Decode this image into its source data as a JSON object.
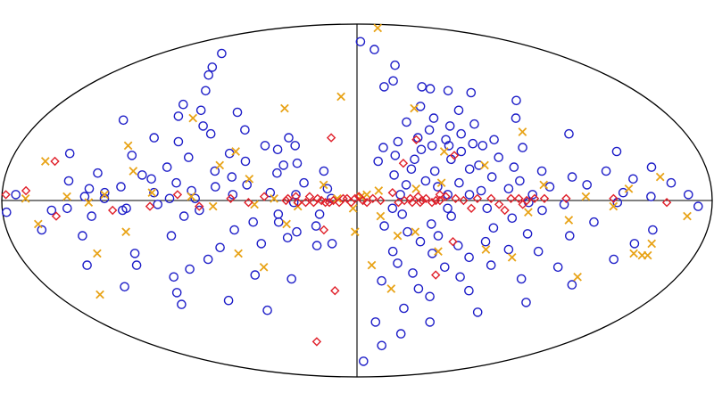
{
  "chart_data": {
    "type": "scatter",
    "projection": "aitoff-hammer-ellipse",
    "xlim": [
      -180,
      180
    ],
    "ylim": [
      -90,
      90
    ],
    "grid": false,
    "axes": "equator-and-central-meridian",
    "series": [
      {
        "marker": "circle",
        "color": "#1e1ec8",
        "points": [
          [
            -124,
            75
          ],
          [
            -112,
            68
          ],
          [
            -107,
            64
          ],
          [
            -98,
            56
          ],
          [
            -105,
            49
          ],
          [
            -92,
            46
          ],
          [
            -70,
            45
          ],
          [
            -103,
            43
          ],
          [
            -133,
            41
          ],
          [
            -86,
            38
          ],
          [
            -62,
            36
          ],
          [
            -80,
            34
          ],
          [
            -37,
            32
          ],
          [
            -110,
            32
          ],
          [
            -96,
            30
          ],
          [
            -49,
            28
          ],
          [
            -33,
            28
          ],
          [
            -42,
            26
          ],
          [
            -67,
            24
          ],
          [
            -151,
            24
          ],
          [
            -118,
            23
          ],
          [
            -88,
            22
          ],
          [
            -58,
            20
          ],
          [
            -31,
            19
          ],
          [
            -38,
            18
          ],
          [
            -98,
            17
          ],
          [
            -73,
            15
          ],
          [
            -17,
            15
          ],
          [
            -41,
            14
          ],
          [
            -133,
            14
          ],
          [
            -110,
            13
          ],
          [
            -64,
            12
          ],
          [
            -105,
            11
          ],
          [
            -147,
            10
          ],
          [
            -27,
            9
          ],
          [
            -92,
            9
          ],
          [
            -56,
            8
          ],
          [
            -72,
            7
          ],
          [
            -120,
            7
          ],
          [
            -15,
            6
          ],
          [
            -136,
            6
          ],
          [
            -84,
            5
          ],
          [
            -128,
            4
          ],
          [
            -103,
            4
          ],
          [
            -44,
            4
          ],
          [
            -173,
            3
          ],
          [
            -31,
            3
          ],
          [
            -63,
            3
          ],
          [
            -138,
            2
          ],
          [
            -128,
            1
          ],
          [
            -95,
            1
          ],
          [
            -82,
            1
          ],
          [
            -13,
            1
          ],
          [
            -32,
            -1
          ],
          [
            -101,
            -2
          ],
          [
            -147,
            -4
          ],
          [
            -117,
            -4
          ],
          [
            -119,
            -5
          ],
          [
            -155,
            -5
          ],
          [
            -80,
            -5
          ],
          [
            -178,
            -6
          ],
          [
            -40,
            -7
          ],
          [
            -19,
            -7
          ],
          [
            -88,
            -8
          ],
          [
            -135,
            -8
          ],
          [
            -53,
            -11
          ],
          [
            -40,
            -11
          ],
          [
            -21,
            -13
          ],
          [
            -63,
            -15
          ],
          [
            -162,
            -15
          ],
          [
            -31,
            -16
          ],
          [
            -142,
            -18
          ],
          [
            -96,
            -18
          ],
          [
            -36,
            -19
          ],
          [
            -50,
            -22
          ],
          [
            -13,
            -22
          ],
          [
            -21,
            -23
          ],
          [
            -72,
            -24
          ],
          [
            -118,
            -27
          ],
          [
            -80,
            -30
          ],
          [
            -147,
            -33
          ],
          [
            -120,
            -33
          ],
          [
            -92,
            -35
          ],
          [
            -57,
            -38
          ],
          [
            -103,
            -39
          ],
          [
            -37,
            -40
          ],
          [
            -135,
            -44
          ],
          [
            -107,
            -47
          ],
          [
            -79,
            -51
          ],
          [
            -110,
            -53
          ],
          [
            -58,
            -56
          ],
          [
            4,
            81
          ],
          [
            17,
            77
          ],
          [
            30,
            69
          ],
          [
            25,
            61
          ],
          [
            18,
            58
          ],
          [
            43,
            58
          ],
          [
            48,
            57
          ],
          [
            59,
            56
          ],
          [
            73,
            55
          ],
          [
            98,
            51
          ],
          [
            38,
            48
          ],
          [
            60,
            46
          ],
          [
            44,
            42
          ],
          [
            91,
            42
          ],
          [
            28,
            40
          ],
          [
            66,
            39
          ],
          [
            52,
            38
          ],
          [
            40,
            36
          ],
          [
            57,
            34
          ],
          [
            116,
            34
          ],
          [
            33,
            32
          ],
          [
            48,
            31
          ],
          [
            74,
            31
          ],
          [
            22,
            30
          ],
          [
            62,
            29
          ],
          [
            40,
            28
          ],
          [
            49,
            28
          ],
          [
            67,
            28
          ],
          [
            14,
            27
          ],
          [
            88,
            27
          ],
          [
            34,
            26
          ],
          [
            55,
            25
          ],
          [
            137,
            25
          ],
          [
            20,
            23
          ],
          [
            74,
            22
          ],
          [
            30,
            21
          ],
          [
            49,
            21
          ],
          [
            11,
            20
          ],
          [
            63,
            18
          ],
          [
            81,
            17
          ],
          [
            152,
            17
          ],
          [
            28,
            16
          ],
          [
            58,
            16
          ],
          [
            40,
            15
          ],
          [
            95,
            15
          ],
          [
            128,
            15
          ],
          [
            19,
            13
          ],
          [
            69,
            12
          ],
          [
            110,
            12
          ],
          [
            141,
            11
          ],
          [
            35,
            10
          ],
          [
            83,
            10
          ],
          [
            52,
            9
          ],
          [
            160,
            9
          ],
          [
            25,
            8
          ],
          [
            117,
            8
          ],
          [
            41,
            7
          ],
          [
            98,
            7
          ],
          [
            77,
            6
          ],
          [
            63,
            5
          ],
          [
            135,
            4
          ],
          [
            22,
            3
          ],
          [
            46,
            3
          ],
          [
            57,
            3
          ],
          [
            89,
            3
          ],
          [
            168,
            3
          ],
          [
            149,
            2
          ],
          [
            87,
            -1
          ],
          [
            132,
            -1
          ],
          [
            105,
            -2
          ],
          [
            173,
            -3
          ],
          [
            18,
            -4
          ],
          [
            46,
            -4
          ],
          [
            66,
            -4
          ],
          [
            94,
            -5
          ],
          [
            23,
            -7
          ],
          [
            48,
            -8
          ],
          [
            79,
            -9
          ],
          [
            121,
            -11
          ],
          [
            38,
            -12
          ],
          [
            14,
            -13
          ],
          [
            70,
            -14
          ],
          [
            152,
            -15
          ],
          [
            26,
            -16
          ],
          [
            88,
            -17
          ],
          [
            42,
            -18
          ],
          [
            110,
            -18
          ],
          [
            33,
            -21
          ],
          [
            67,
            -21
          ],
          [
            145,
            -22
          ],
          [
            53,
            -23
          ],
          [
            80,
            -25
          ],
          [
            19,
            -26
          ],
          [
            96,
            -26
          ],
          [
            40,
            -27
          ],
          [
            60,
            -29
          ],
          [
            138,
            -30
          ],
          [
            22,
            -32
          ],
          [
            73,
            -33
          ],
          [
            48,
            -34
          ],
          [
            110,
            -34
          ],
          [
            31,
            -37
          ],
          [
            58,
            -39
          ],
          [
            93,
            -40
          ],
          [
            14,
            -41
          ],
          [
            124,
            -43
          ],
          [
            36,
            -45
          ],
          [
            66,
            -46
          ],
          [
            44,
            -49
          ],
          [
            105,
            -52
          ],
          [
            30,
            -55
          ],
          [
            79,
            -57
          ],
          [
            13,
            -62
          ],
          [
            51,
            -62
          ],
          [
            34,
            -68
          ],
          [
            22,
            -74
          ],
          [
            8,
            -82
          ]
        ]
      },
      {
        "marker": "x",
        "color": "#e8a317",
        "points": [
          [
            50,
            88
          ],
          [
            -10,
            53
          ],
          [
            -43,
            47
          ],
          [
            -94,
            42
          ],
          [
            -122,
            28
          ],
          [
            -64,
            25
          ],
          [
            -162,
            20
          ],
          [
            -115,
            15
          ],
          [
            -71,
            18
          ],
          [
            -55,
            11
          ],
          [
            -17,
            8
          ],
          [
            -104,
            4
          ],
          [
            -128,
            3
          ],
          [
            -147,
            2
          ],
          [
            -84,
            2
          ],
          [
            -42,
            1
          ],
          [
            -10,
            1
          ],
          [
            -168,
            1
          ],
          [
            -136,
            -1
          ],
          [
            -52,
            -2
          ],
          [
            -73,
            -3
          ],
          [
            -30,
            -3
          ],
          [
            -2,
            -4
          ],
          [
            -163,
            -12
          ],
          [
            -36,
            -12
          ],
          [
            -119,
            -16
          ],
          [
            -63,
            -27
          ],
          [
            -138,
            -27
          ],
          [
            -51,
            -34
          ],
          [
            -154,
            -48
          ],
          [
            2,
            2
          ],
          [
            5,
            3
          ],
          [
            11,
            5
          ],
          [
            30,
            6
          ],
          [
            46,
            25
          ],
          [
            91,
            35
          ],
          [
            66,
            18
          ],
          [
            95,
            8
          ],
          [
            116,
            2
          ],
          [
            138,
            6
          ],
          [
            155,
            12
          ],
          [
            130,
            -3
          ],
          [
            87,
            -6
          ],
          [
            108,
            -10
          ],
          [
            168,
            -8
          ],
          [
            30,
            -16
          ],
          [
            21,
            -18
          ],
          [
            68,
            -25
          ],
          [
            147,
            -27
          ],
          [
            152,
            -28
          ],
          [
            -1,
            -16
          ],
          [
            8,
            -33
          ],
          [
            43,
            -26
          ],
          [
            83,
            -29
          ],
          [
            20,
            -45
          ],
          [
            154,
            -22
          ],
          [
            43,
            9
          ],
          [
            12,
            -8
          ],
          [
            124,
            -39
          ],
          [
            155,
            -28
          ],
          [
            34,
            47
          ]
        ]
      },
      {
        "marker": "diamond",
        "color": "#e0202a",
        "points": [
          [
            -178,
            3
          ],
          [
            -168,
            5
          ],
          [
            -153,
            -8
          ],
          [
            -157,
            20
          ],
          [
            -124,
            -5
          ],
          [
            -105,
            -3
          ],
          [
            -91,
            3
          ],
          [
            -80,
            -3
          ],
          [
            -64,
            1
          ],
          [
            -55,
            -1
          ],
          [
            -47,
            2
          ],
          [
            -36,
            0
          ],
          [
            -31,
            2
          ],
          [
            -26,
            -1
          ],
          [
            -17,
            -15
          ],
          [
            -14,
            32
          ],
          [
            -13,
            -46
          ],
          [
            -5,
            1
          ],
          [
            -34,
            -72
          ],
          [
            -35,
            1
          ],
          [
            -30,
            -1
          ],
          [
            -24,
            2
          ],
          [
            -22,
            -1
          ],
          [
            -20,
            1
          ],
          [
            -18,
            0
          ],
          [
            -16,
            -1
          ],
          [
            -14,
            -1
          ],
          [
            -12,
            0
          ],
          [
            -9,
            -1
          ],
          [
            -7,
            1
          ],
          [
            -3,
            -1
          ],
          [
            -1,
            1
          ],
          [
            1,
            2
          ],
          [
            3,
            0
          ],
          [
            5,
            -1
          ],
          [
            8,
            1
          ],
          [
            12,
            0
          ],
          [
            18,
            4
          ],
          [
            21,
            -1
          ],
          [
            24,
            0
          ],
          [
            27,
            1
          ],
          [
            28,
            -1
          ],
          [
            31,
            2
          ],
          [
            32,
            -1
          ],
          [
            33,
            0
          ],
          [
            35,
            1
          ],
          [
            38,
            -1
          ],
          [
            40,
            0
          ],
          [
            42,
            0
          ],
          [
            45,
            2
          ],
          [
            50,
            1
          ],
          [
            54,
            0
          ],
          [
            58,
            -4
          ],
          [
            61,
            1
          ],
          [
            68,
            1
          ],
          [
            72,
            -2
          ],
          [
            78,
            1
          ],
          [
            82,
            1
          ],
          [
            84,
            -2
          ],
          [
            86,
            0
          ],
          [
            90,
            1
          ],
          [
            95,
            1
          ],
          [
            106,
            1
          ],
          [
            130,
            1
          ],
          [
            157,
            -1
          ],
          [
            24,
            19
          ],
          [
            32,
            31
          ],
          [
            42,
            3
          ],
          [
            51,
            23
          ],
          [
            50,
            -21
          ],
          [
            75,
            -5
          ],
          [
            44,
            -38
          ]
        ]
      }
    ]
  }
}
